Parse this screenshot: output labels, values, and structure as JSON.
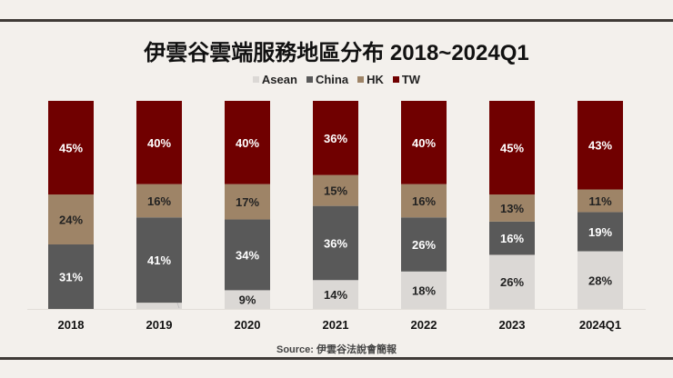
{
  "chart_data": {
    "type": "bar",
    "stacked": true,
    "title": "伊雲谷雲端服務地區分布 2018~2024Q1",
    "categories": [
      "2018",
      "2019",
      "2020",
      "2021",
      "2022",
      "2023",
      "2024Q1"
    ],
    "series": [
      {
        "name": "Asean",
        "color": "#dbd8d5",
        "label_color": "#222222",
        "values": [
          0,
          3,
          9,
          14,
          18,
          26,
          28
        ]
      },
      {
        "name": "China",
        "color": "#595959",
        "label_color": "#ffffff",
        "values": [
          31,
          41,
          34,
          36,
          26,
          16,
          19
        ]
      },
      {
        "name": "HK",
        "color": "#9e8467",
        "label_color": "#222222",
        "values": [
          24,
          16,
          17,
          15,
          16,
          13,
          11
        ]
      },
      {
        "name": "TW",
        "color": "#700000",
        "label_color": "#ffffff",
        "values": [
          45,
          40,
          40,
          36,
          40,
          45,
          43
        ]
      }
    ],
    "value_format": "percent",
    "legend": "top",
    "grid": false,
    "source": "Source:  伊雲谷法說會簡報"
  }
}
